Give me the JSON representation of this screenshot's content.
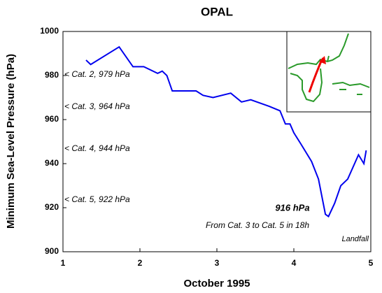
{
  "chart_data": {
    "type": "line",
    "title": "OPAL",
    "x_label": "October 1995",
    "y_label": "Minimum Sea-Level Pressure (hPa)",
    "xlim": [
      1,
      5
    ],
    "xticks": [
      1,
      2,
      3,
      4,
      5
    ],
    "ylim": [
      900,
      1000
    ],
    "yticks": [
      900,
      920,
      940,
      960,
      980,
      1000
    ],
    "series": [
      {
        "name": "Opal",
        "color": "#0000ee",
        "x": [
          1.3,
          1.36,
          1.73,
          1.91,
          2.05,
          2.23,
          2.29,
          2.35,
          2.42,
          2.73,
          2.82,
          2.95,
          3.18,
          3.32,
          3.44,
          3.68,
          3.82,
          3.89,
          3.95,
          4.0,
          4.09,
          4.23,
          4.32,
          4.41,
          4.45,
          4.53,
          4.61,
          4.7,
          4.84,
          4.91,
          4.94
        ],
        "values": [
          987,
          985,
          993,
          984,
          984,
          981,
          982,
          980,
          973,
          973,
          971,
          970,
          972,
          968,
          969,
          966,
          964,
          958,
          958,
          954,
          949,
          941,
          933,
          917,
          916,
          922,
          930,
          933,
          944,
          940,
          946
        ]
      }
    ],
    "annotations": [
      "< Cat. 2, 979 hPa",
      "< Cat. 3, 964 hPa",
      "< Cat. 4, 944 hPa",
      "< Cat. 5, 922 hPa",
      "916 hPa",
      "From Cat. 3 to Cat. 5 in 18h",
      "Landfall"
    ]
  }
}
